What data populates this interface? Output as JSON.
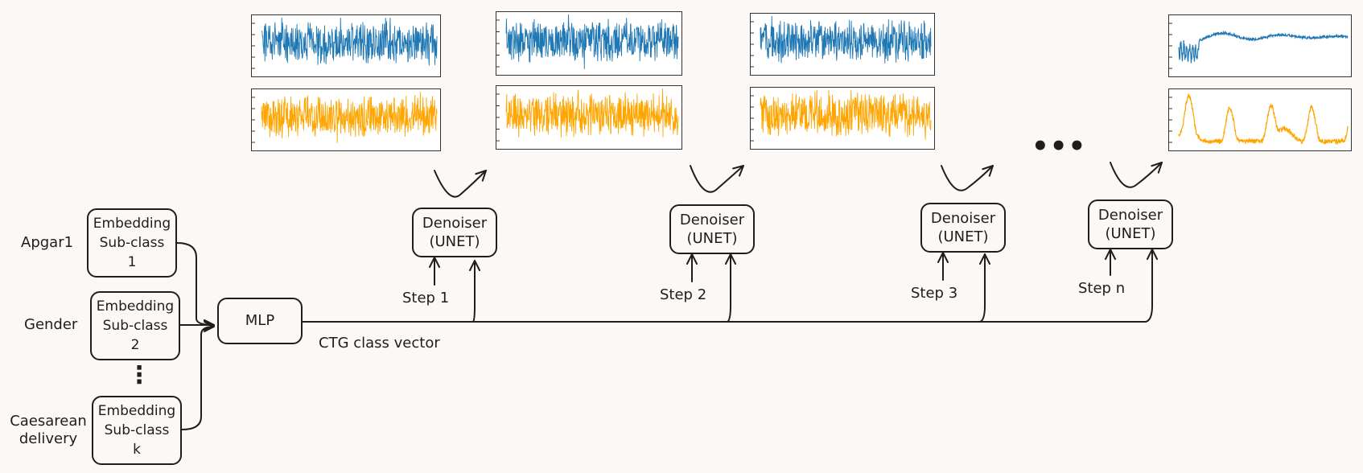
{
  "colors": {
    "fhr": "#1f77b4",
    "uc": "#ffa500",
    "ink": "#1e1e1e",
    "background": "#fcf8f6"
  },
  "inputs": [
    {
      "name": "Apgar1",
      "embedding": [
        "Embedding",
        "Sub-class",
        "1"
      ]
    },
    {
      "name": "Gender",
      "embedding": [
        "Embedding",
        "Sub-class",
        "2"
      ]
    },
    {
      "name": "Caesarean delivery",
      "name_lines": [
        "Caesarean",
        "delivery"
      ],
      "embedding": [
        "Embedding",
        "Sub-class",
        "k"
      ]
    }
  ],
  "vertical_ellipsis": "⋮",
  "mlp": {
    "label": "MLP"
  },
  "class_vector_label": "CTG class vector",
  "denoisers": [
    {
      "line1": "Denoiser",
      "line2": "(UNET)",
      "step": "Step 1"
    },
    {
      "line1": "Denoiser",
      "line2": "(UNET)",
      "step": "Step 2"
    },
    {
      "line1": "Denoiser",
      "line2": "(UNET)",
      "step": "Step 3"
    },
    {
      "line1": "Denoiser",
      "line2": "(UNET)",
      "step": "Step n"
    }
  ],
  "ellipsis": "•••",
  "signal_pairs": [
    {
      "stage": "step-1",
      "fhr": "noise",
      "uc": "noise"
    },
    {
      "stage": "step-2",
      "fhr": "noise",
      "uc": "noise"
    },
    {
      "stage": "step-3",
      "fhr": "noise",
      "uc": "noise"
    },
    {
      "stage": "step-n",
      "fhr": "clean",
      "uc": "clean"
    }
  ]
}
